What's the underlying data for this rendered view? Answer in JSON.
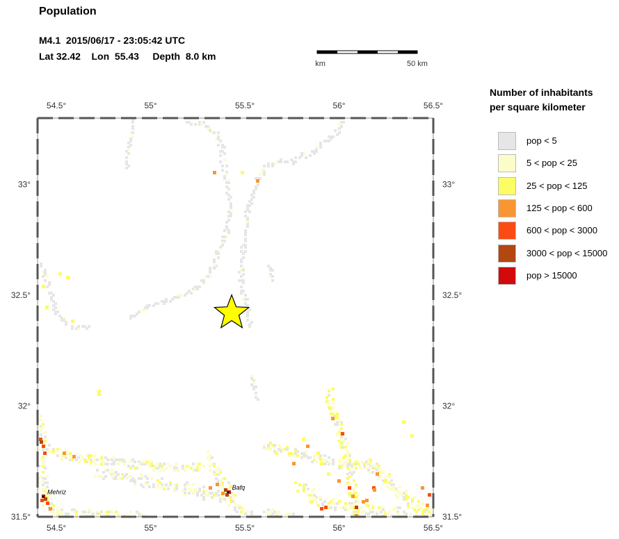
{
  "title": "Population",
  "event": {
    "line1": "M4.1  2015/06/17 - 23:05:42 UTC",
    "line2": "Lat 32.42    Lon  55.43     Depth  8.0 km",
    "lat": 32.42,
    "lon": 55.43,
    "depth_km": 8.0
  },
  "scale_bar": {
    "start_label": "0 km",
    "end_label": "50 km"
  },
  "map": {
    "lon_range": [
      54.4,
      56.5
    ],
    "lat_range": [
      31.5,
      33.3
    ],
    "lon_ticks": [
      {
        "value": 54.5,
        "label": "54.5°"
      },
      {
        "value": 55.0,
        "label": "55°"
      },
      {
        "value": 55.5,
        "label": "55.5°"
      },
      {
        "value": 56.0,
        "label": "56°"
      },
      {
        "value": 56.5,
        "label": "56.5°"
      }
    ],
    "lat_ticks": [
      {
        "value": 33.0,
        "label": "33°"
      },
      {
        "value": 32.5,
        "label": "32.5°"
      },
      {
        "value": 32.0,
        "label": "32°"
      },
      {
        "value": 31.5,
        "label": "31.5°"
      }
    ],
    "places": [
      {
        "name": "Mehriz",
        "lon": 54.43,
        "lat": 31.59
      },
      {
        "name": "Bafq",
        "lon": 55.41,
        "lat": 31.61
      }
    ],
    "epicenter_marker": "star-icon",
    "epicenter_color": "#ffff00"
  },
  "legend": {
    "title_line1": "Number of inhabitants",
    "title_line2": "per square kilometer",
    "items": [
      {
        "label": "pop < 5",
        "color": "#e6e6e6"
      },
      {
        "label": "5 < pop < 25",
        "color": "#fcfcc8"
      },
      {
        "label": "25 < pop < 125",
        "color": "#fcfc64"
      },
      {
        "label": "125 < pop < 600",
        "color": "#fa9632"
      },
      {
        "label": "600 < pop < 3000",
        "color": "#fa4b14"
      },
      {
        "label": "3000 < pop < 15000",
        "color": "#b4460f"
      },
      {
        "label": "pop > 15000",
        "color": "#d20a0a"
      }
    ]
  }
}
